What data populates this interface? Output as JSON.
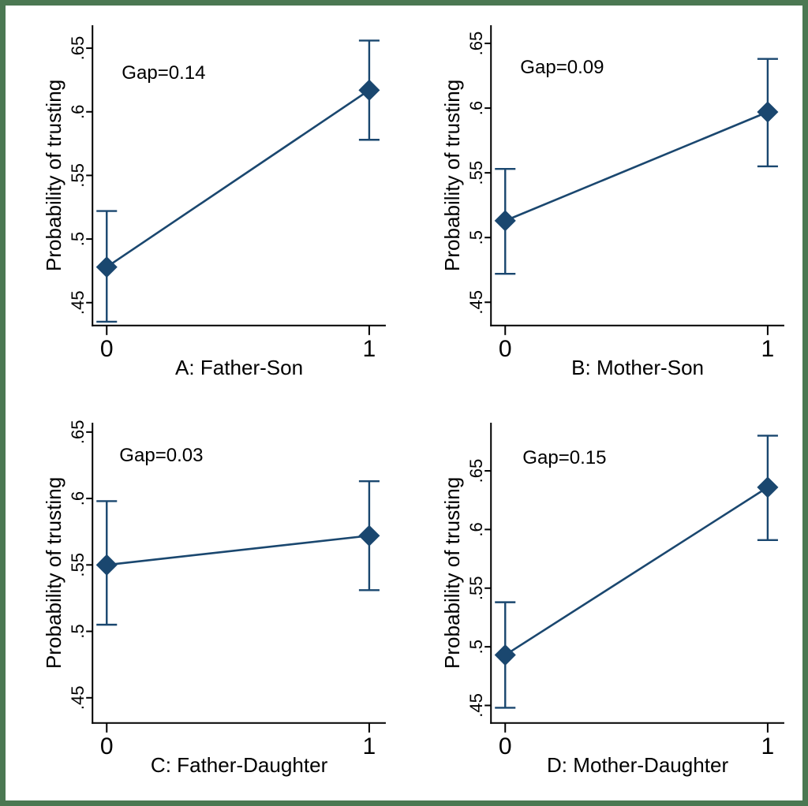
{
  "figure": {
    "border_color": "#4b7852",
    "background": "#ffffff",
    "accent_color": "#1a476f",
    "axis_color": "#000000",
    "text_color": "#000000"
  },
  "chart_data": [
    {
      "type": "line",
      "panel": "A",
      "xlabel": "A: Father-Son",
      "ylabel": "Probability of trusting",
      "annotation": "Gap=0.14",
      "annotation_xy": [
        147,
        93
      ],
      "x": [
        0,
        1
      ],
      "xtick_labels": [
        "0",
        "1"
      ],
      "series": [
        {
          "name": "estimate",
          "values": [
            0.478,
            0.617
          ]
        }
      ],
      "ci_low": [
        0.435,
        0.578
      ],
      "ci_high": [
        0.522,
        0.656
      ],
      "yticks": [
        0.45,
        0.5,
        0.55,
        0.6,
        0.65
      ],
      "ytick_labels": [
        ".45",
        ".5",
        ".55",
        ".6",
        ".65"
      ],
      "ylim": [
        0.432,
        0.668
      ],
      "grid": false,
      "legend": "none"
    },
    {
      "type": "line",
      "panel": "B",
      "xlabel": "B: Mother-Son",
      "ylabel": "Probability of trusting",
      "annotation": "Gap=0.09",
      "annotation_xy": [
        147,
        86
      ],
      "x": [
        0,
        1
      ],
      "xtick_labels": [
        "0",
        "1"
      ],
      "series": [
        {
          "name": "estimate",
          "values": [
            0.513,
            0.597
          ]
        }
      ],
      "ci_low": [
        0.472,
        0.555
      ],
      "ci_high": [
        0.553,
        0.638
      ],
      "yticks": [
        0.45,
        0.5,
        0.55,
        0.6,
        0.65
      ],
      "ytick_labels": [
        ".45",
        ".5",
        ".55",
        ".6",
        ".65"
      ],
      "ylim": [
        0.432,
        0.664
      ],
      "grid": false,
      "legend": "none"
    },
    {
      "type": "line",
      "panel": "C",
      "xlabel": "C: Father-Daughter",
      "ylabel": "Probability of trusting",
      "annotation": "Gap=0.03",
      "annotation_xy": [
        144,
        74
      ],
      "x": [
        0,
        1
      ],
      "xtick_labels": [
        "0",
        "1"
      ],
      "series": [
        {
          "name": "estimate",
          "values": [
            0.55,
            0.572
          ]
        }
      ],
      "ci_low": [
        0.505,
        0.531
      ],
      "ci_high": [
        0.598,
        0.613
      ],
      "yticks": [
        0.45,
        0.5,
        0.55,
        0.6,
        0.65
      ],
      "ytick_labels": [
        ".45",
        ".5",
        ".55",
        ".6",
        ".65"
      ],
      "ylim": [
        0.431,
        0.657
      ],
      "grid": false,
      "legend": "none"
    },
    {
      "type": "line",
      "panel": "D",
      "xlabel": "D: Mother-Daughter",
      "ylabel": "Probability of trusting",
      "annotation": "Gap=0.15",
      "annotation_xy": [
        150,
        77
      ],
      "x": [
        0,
        1
      ],
      "xtick_labels": [
        "0",
        "1"
      ],
      "series": [
        {
          "name": "estimate",
          "values": [
            0.493,
            0.636
          ]
        }
      ],
      "ci_low": [
        0.448,
        0.591
      ],
      "ci_high": [
        0.538,
        0.68
      ],
      "yticks": [
        0.45,
        0.5,
        0.55,
        0.6,
        0.65
      ],
      "ytick_labels": [
        ".45",
        ".5",
        ".55",
        ".6",
        ".65"
      ],
      "ylim": [
        0.435,
        0.691
      ],
      "grid": false,
      "legend": "none"
    }
  ]
}
